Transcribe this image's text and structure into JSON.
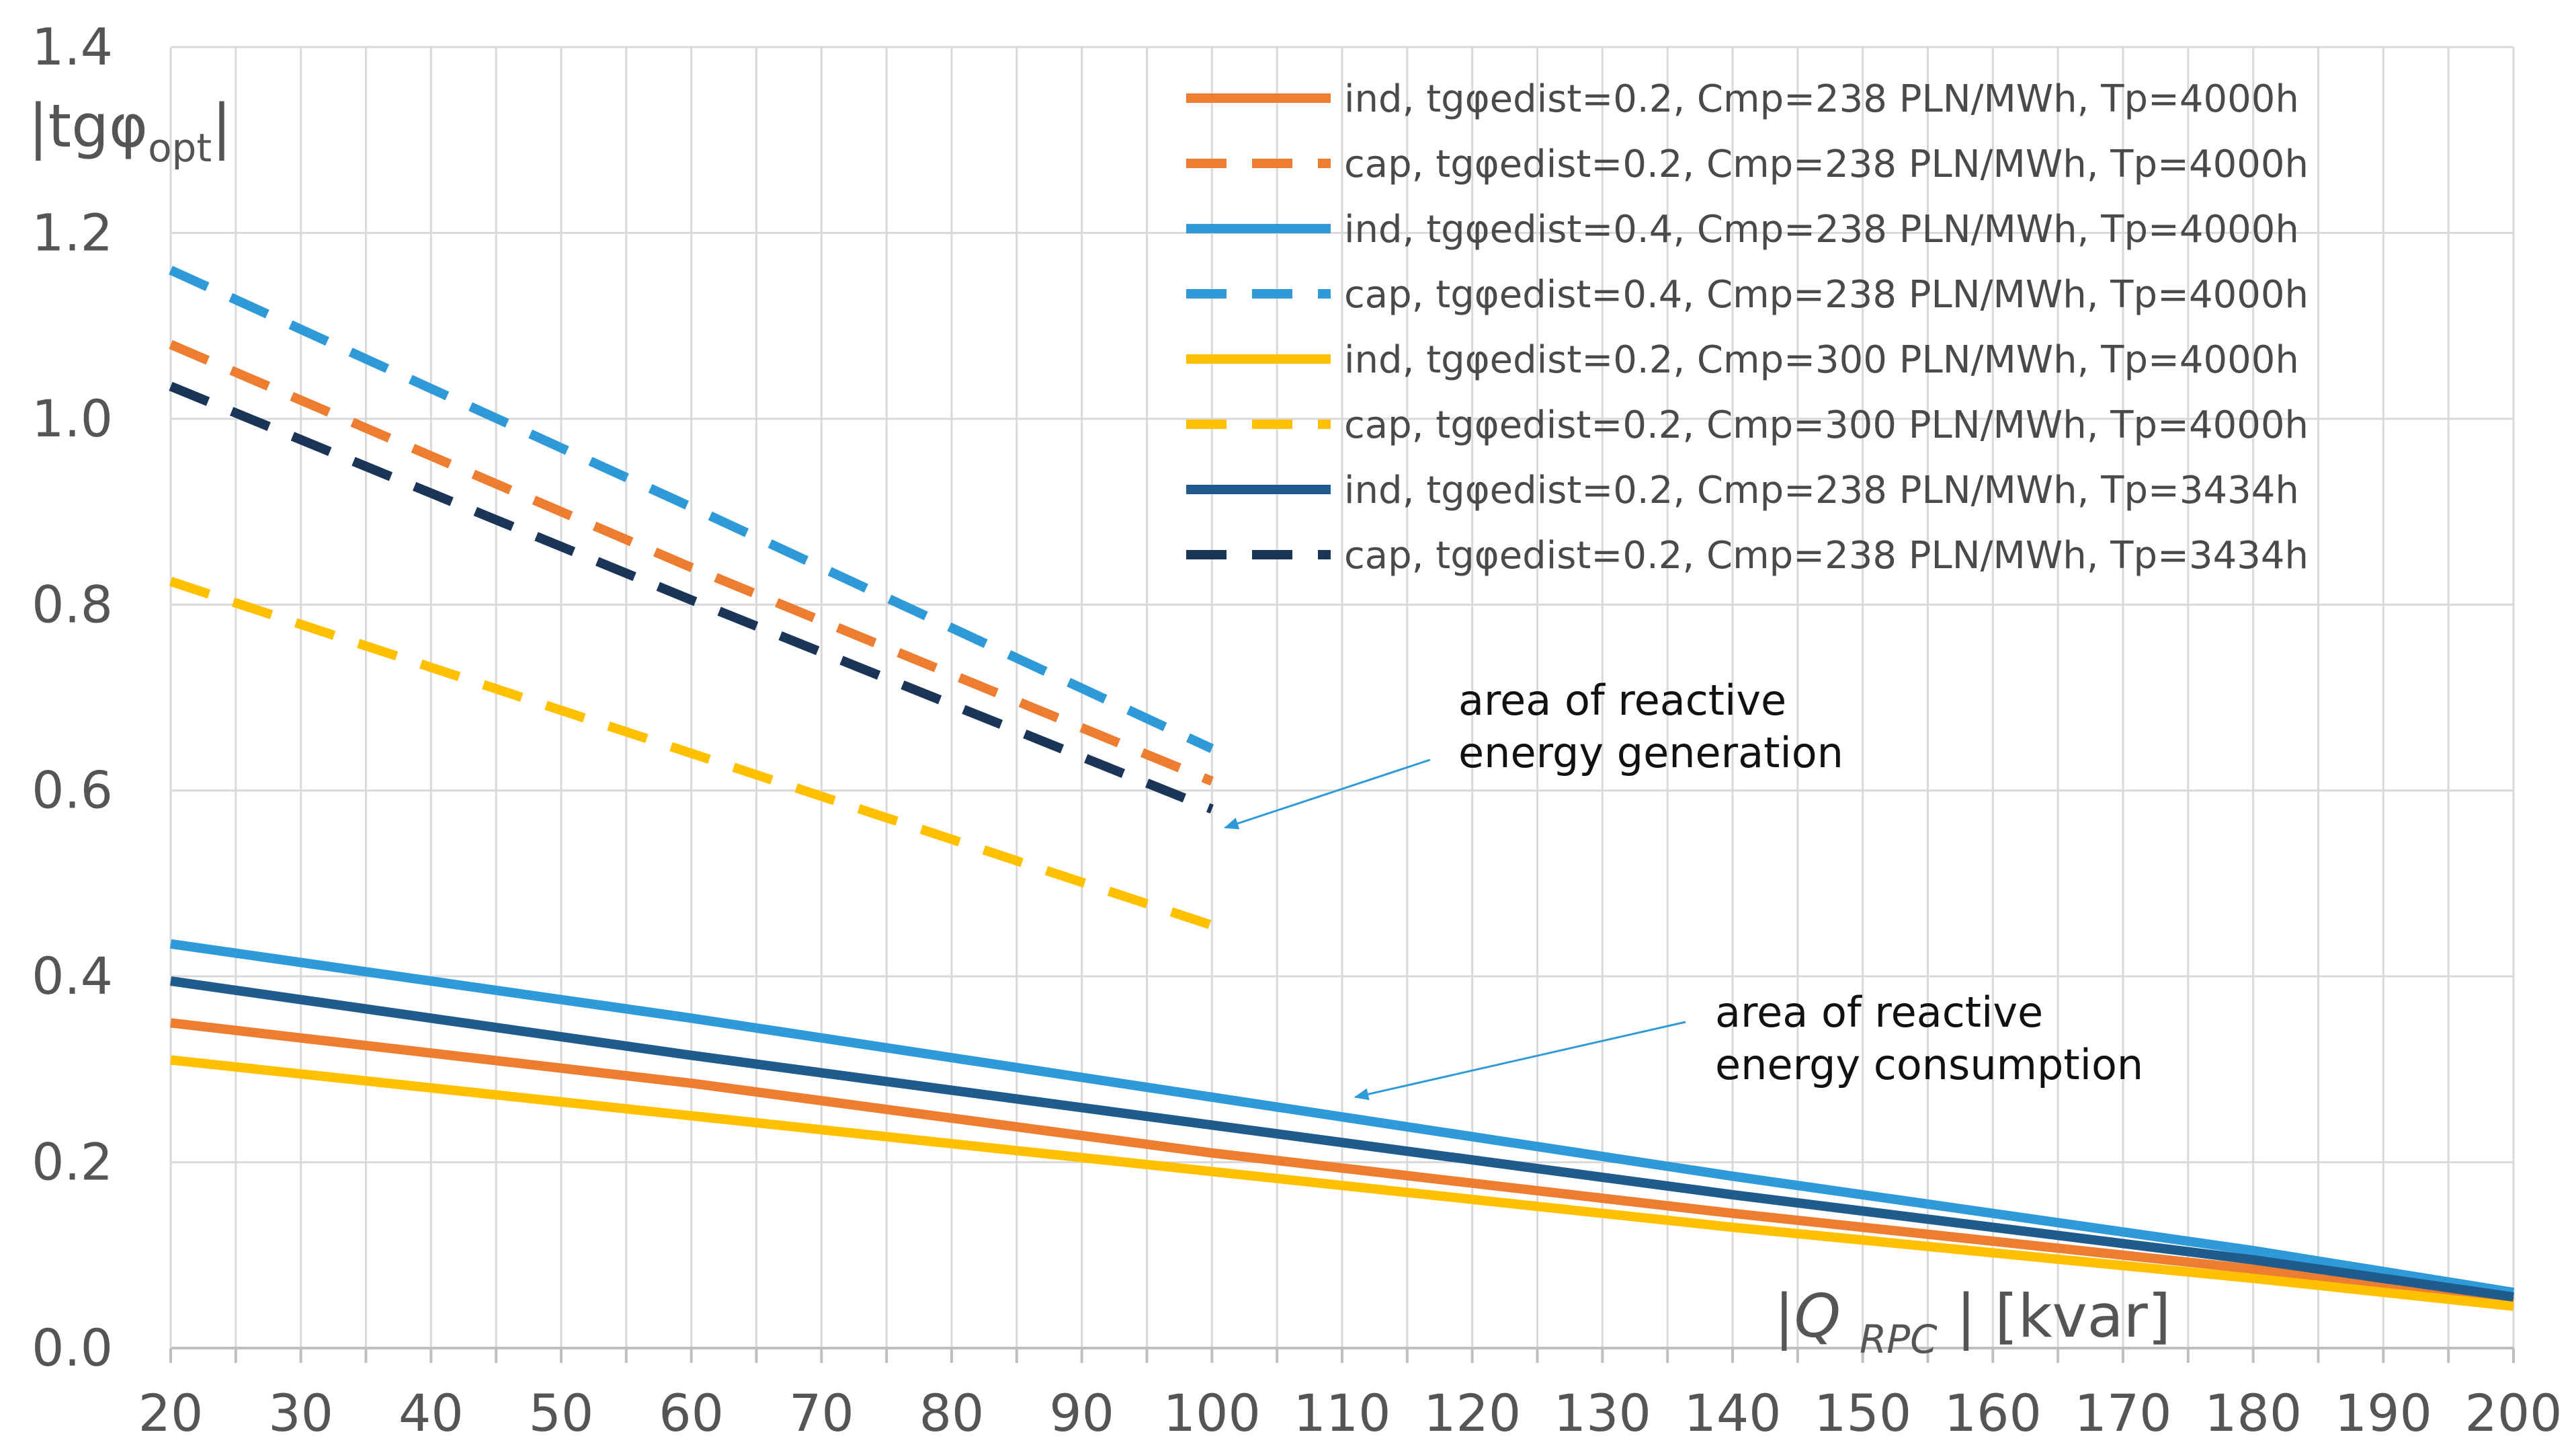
{
  "chart_data": {
    "type": "line",
    "title": "",
    "ylabel": "|tgφopt|",
    "ylabel_parts": {
      "pre": "|tgφ",
      "sub": "opt",
      "post": "|"
    },
    "xlabel": "|Q RPC | [kvar]",
    "xlabel_parts": {
      "pre": "|Q ",
      "sub": "RPC",
      "post": " | [kvar]"
    },
    "xlim": [
      20,
      200
    ],
    "ylim": [
      0.0,
      1.4
    ],
    "x_ticks": [
      "20",
      "30",
      "40",
      "50",
      "60",
      "70",
      "80",
      "90",
      "100",
      "110",
      "120",
      "130",
      "140",
      "150",
      "160",
      "170",
      "180",
      "190",
      "200"
    ],
    "y_ticks": [
      "0.0",
      "0.2",
      "0.4",
      "0.6",
      "0.8",
      "1.0",
      "1.2",
      "1.4"
    ],
    "grid": true,
    "legend_position": "top-right",
    "series": [
      {
        "name": "ind, tgφedist=0.2, Cmp=238 PLN/MWh, Tp=4000h",
        "color": "#ED7D31",
        "style": "solid",
        "x": [
          20,
          60,
          100,
          140,
          180,
          200
        ],
        "y": [
          0.35,
          0.285,
          0.21,
          0.145,
          0.085,
          0.05
        ]
      },
      {
        "name": "cap, tgφedist=0.2, Cmp=238 PLN/MWh, Tp=4000h",
        "color": "#ED7D31",
        "style": "dashed",
        "x": [
          20,
          60,
          100
        ],
        "y": [
          1.08,
          0.84,
          0.61
        ]
      },
      {
        "name": "ind, tgφedist=0.4, Cmp=238 PLN/MWh, Tp=4000h",
        "color": "#2E9AD8",
        "style": "solid",
        "x": [
          20,
          60,
          100,
          140,
          180,
          200
        ],
        "y": [
          0.435,
          0.355,
          0.27,
          0.185,
          0.105,
          0.06
        ]
      },
      {
        "name": "cap, tgφedist=0.4, Cmp=238 PLN/MWh, Tp=4000h",
        "color": "#2E9AD8",
        "style": "dashed",
        "x": [
          20,
          60,
          100
        ],
        "y": [
          1.16,
          0.905,
          0.645
        ]
      },
      {
        "name": "ind, tgφedist=0.2, Cmp=300 PLN/MWh, Tp=4000h",
        "color": "#FFC000",
        "style": "solid",
        "x": [
          20,
          60,
          100,
          140,
          180,
          200
        ],
        "y": [
          0.31,
          0.25,
          0.19,
          0.13,
          0.075,
          0.045
        ]
      },
      {
        "name": "cap, tgφedist=0.2, Cmp=300 PLN/MWh, Tp=4000h",
        "color": "#FFC000",
        "style": "dashed",
        "x": [
          20,
          60,
          100
        ],
        "y": [
          0.825,
          0.64,
          0.455
        ]
      },
      {
        "name": "ind, tgφedist=0.2, Cmp=238 PLN/MWh, Tp=3434h",
        "color": "#1F5B8C",
        "style": "solid",
        "x": [
          20,
          60,
          100,
          140,
          180,
          200
        ],
        "y": [
          0.395,
          0.315,
          0.24,
          0.165,
          0.095,
          0.055
        ]
      },
      {
        "name": "cap, tgφedist=0.2, Cmp=238 PLN/MWh, Tp=3434h",
        "color": "#1B3558",
        "style": "dashed",
        "x": [
          20,
          60,
          100
        ],
        "y": [
          1.035,
          0.805,
          0.58
        ]
      }
    ],
    "annotations": [
      {
        "lines": [
          "area of reactive",
          "energy generation"
        ],
        "arrow_to": [
          101,
          0.56
        ]
      },
      {
        "lines": [
          "area of reactive",
          "energy consumption"
        ],
        "arrow_to": [
          111,
          0.27
        ]
      }
    ]
  }
}
